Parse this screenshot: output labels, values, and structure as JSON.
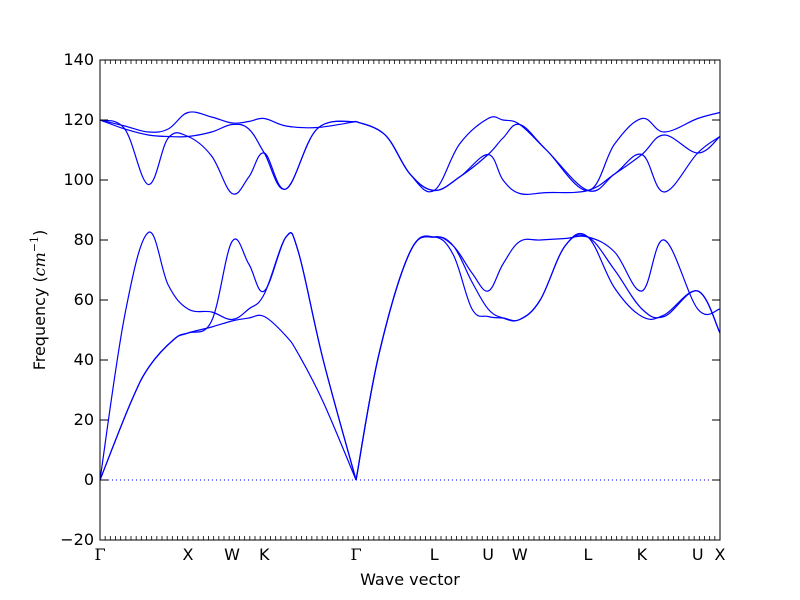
{
  "chart_data": {
    "type": "line",
    "title": "",
    "xlabel": "Wave vector",
    "ylabel_prefix": "Frequency (",
    "ylabel_unit_base": "cm",
    "ylabel_unit_exp": "−1",
    "ylabel_suffix": ")",
    "ylim": [
      -20,
      140
    ],
    "yticks": [
      -20,
      0,
      20,
      40,
      60,
      80,
      100,
      120,
      140
    ],
    "xlim": [
      0,
      12
    ],
    "high_symmetry_points": [
      {
        "label": "Γ",
        "x": 0
      },
      {
        "label": "X",
        "x": 1.42
      },
      {
        "label": "W",
        "x": 2.13
      },
      {
        "label": "K",
        "x": 2.65
      },
      {
        "label": "Γ",
        "x": 4.13
      },
      {
        "label": "L",
        "x": 5.39
      },
      {
        "label": "U",
        "x": 6.26
      },
      {
        "label": "W",
        "x": 6.77
      },
      {
        "label": "L",
        "x": 7.87
      },
      {
        "label": "K",
        "x": 8.74
      },
      {
        "label": "U",
        "x": 9.64
      },
      {
        "label": "X",
        "x": 10.0
      }
    ],
    "series_color": "#0000ff",
    "zero_line_color": "#0000ff",
    "bands": [
      {
        "x": [
          0,
          0.5,
          0.8,
          1.2,
          1.42,
          1.8,
          2.13,
          2.4,
          2.65,
          3.0,
          3.2,
          3.6,
          4.13
        ],
        "y": [
          0,
          26,
          38,
          47,
          49,
          51,
          53,
          54,
          54.5,
          48,
          42,
          26,
          0
        ]
      },
      {
        "x": [
          0,
          0.5,
          0.8,
          1.2,
          1.42,
          1.8,
          2.13,
          2.4,
          2.65,
          3.0,
          3.2,
          3.6,
          4.13
        ],
        "y": [
          0,
          26,
          38,
          47,
          49,
          53,
          79.5,
          72,
          63,
          81,
          76,
          40,
          0
        ]
      },
      {
        "x": [
          0,
          0.4,
          0.78,
          1.1,
          1.42,
          1.8,
          2.13,
          2.4,
          2.65,
          3.0,
          3.2,
          3.6,
          4.13
        ],
        "y": [
          0,
          55,
          82.5,
          65,
          57,
          56,
          53.5,
          57,
          62,
          81,
          76,
          40,
          0
        ]
      },
      {
        "x": [
          4.13,
          4.5,
          5.0,
          5.39,
          5.7,
          6.0,
          6.26,
          6.5,
          6.77,
          7.1,
          7.5,
          7.87,
          8.3,
          8.74,
          9.1,
          9.64,
          10.0
        ],
        "y": [
          0,
          42,
          76,
          81,
          75,
          57,
          54.5,
          54,
          53.5,
          60,
          78,
          81,
          64,
          54.5,
          55,
          63,
          49
        ]
      },
      {
        "x": [
          4.13,
          4.5,
          5.0,
          5.39,
          5.7,
          6.0,
          6.26,
          6.5,
          6.77,
          7.1,
          7.5,
          7.87,
          8.3,
          8.74,
          9.1,
          9.64,
          10.0
        ],
        "y": [
          0,
          42,
          76,
          81,
          78,
          69,
          63,
          72,
          79.5,
          80,
          80.5,
          81,
          76,
          63,
          80,
          57,
          57
        ]
      },
      {
        "x": [
          4.13,
          4.5,
          5.0,
          5.39,
          5.7,
          6.0,
          6.26,
          6.5,
          6.77,
          7.1,
          7.5,
          7.87,
          8.3,
          8.74,
          9.1,
          9.64,
          10.0
        ],
        "y": [
          0,
          42,
          76,
          81,
          78,
          66,
          57,
          54,
          53.5,
          60,
          78,
          81,
          70,
          57,
          54.5,
          63,
          49
        ]
      },
      {
        "x": [
          0,
          0.4,
          0.78,
          1.1,
          1.42,
          1.8,
          2.13,
          2.4,
          2.65,
          3.0,
          3.5,
          4.13
        ],
        "y": [
          120,
          117,
          115,
          114.5,
          114.5,
          116,
          118.5,
          117,
          109,
          97,
          117,
          119.5
        ]
      },
      {
        "x": [
          0,
          0.4,
          0.78,
          1.1,
          1.42,
          1.8,
          2.13,
          2.4,
          2.65,
          3.0,
          3.5,
          4.13
        ],
        "y": [
          120,
          117,
          98.5,
          114,
          114.5,
          108,
          95.5,
          101,
          109,
          97,
          117,
          119.5
        ]
      },
      {
        "x": [
          0,
          0.4,
          0.78,
          1.1,
          1.42,
          1.8,
          2.13,
          2.4,
          2.65,
          3.0,
          3.5,
          4.13
        ],
        "y": [
          120,
          118,
          116,
          117,
          122.5,
          121,
          119,
          119.5,
          120.5,
          118,
          117.5,
          119.5
        ]
      },
      {
        "x": [
          4.13,
          4.6,
          5.0,
          5.39,
          5.8,
          6.26,
          6.5,
          6.77,
          7.2,
          7.87,
          8.3,
          8.74,
          9.1,
          9.64,
          10.0
        ],
        "y": [
          119.5,
          115,
          102,
          96.5,
          101,
          108.5,
          114,
          118.5,
          110,
          96.5,
          102,
          108.5,
          115,
          109,
          114.5
        ]
      },
      {
        "x": [
          4.13,
          4.6,
          5.0,
          5.39,
          5.8,
          6.26,
          6.5,
          6.77,
          7.2,
          7.87,
          8.3,
          8.74,
          9.1,
          9.64,
          10.0
        ],
        "y": [
          119.5,
          115,
          102,
          96.5,
          101,
          108.5,
          100,
          95.5,
          95.8,
          96.5,
          102,
          108.5,
          96,
          109,
          114.5
        ]
      },
      {
        "x": [
          4.13,
          4.6,
          5.0,
          5.39,
          5.8,
          6.26,
          6.5,
          6.77,
          7.2,
          7.87,
          8.3,
          8.74,
          9.1,
          9.64,
          10.0
        ],
        "y": [
          119.5,
          115,
          102,
          96.5,
          112,
          120.5,
          120,
          118.5,
          110,
          96.5,
          112,
          120.5,
          116,
          120.5,
          122.5
        ]
      }
    ]
  }
}
